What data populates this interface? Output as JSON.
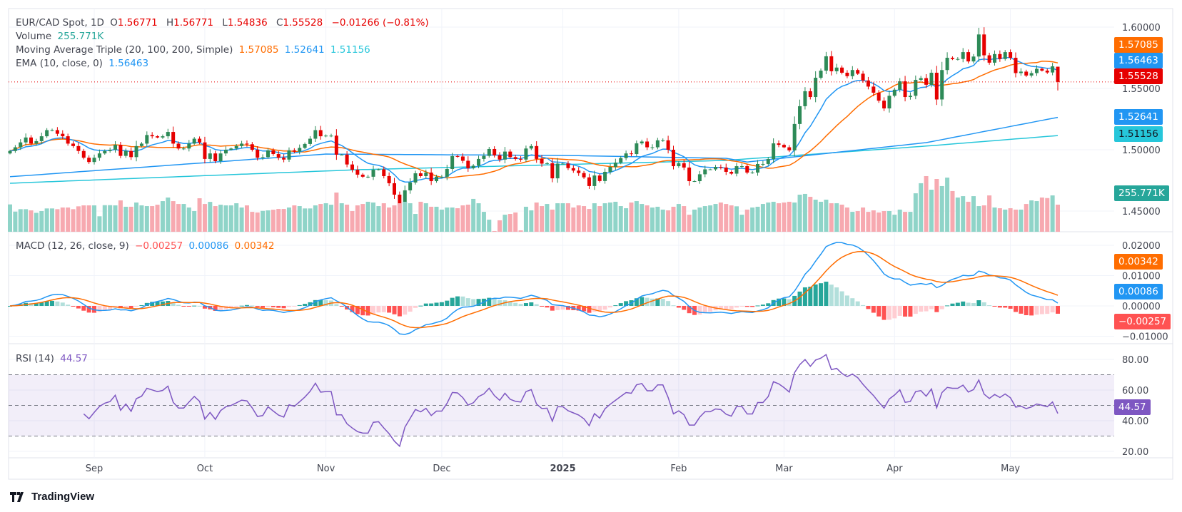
{
  "header": {
    "symbol": "EUR/CAD Spot, 1D",
    "o_label": "O",
    "open": "1.56771",
    "h_label": "H",
    "high": "1.56771",
    "l_label": "L",
    "low": "1.54836",
    "c_label": "C",
    "close": "1.55528",
    "change": "−0.01266 (−0.81%)"
  },
  "legend": {
    "volume_label": "Volume",
    "volume_value": "255.771K",
    "ma_label": "Moving Average Triple (20, 100, 200, Simple)",
    "ma20": "1.57085",
    "ma100": "1.52641",
    "ma200": "1.51156",
    "ema_label": "EMA (10, close, 0)",
    "ema": "1.56463",
    "macd_label": "MACD (12, 26, close, 9)",
    "macd_hist": "−0.00257",
    "macd": "0.00086",
    "macd_signal": "0.00342",
    "rsi_label": "RSI (14)",
    "rsi": "44.57"
  },
  "price_axis": [
    {
      "value": 1.6,
      "label": "1.60000"
    },
    {
      "value": 1.55,
      "label": "1.55000"
    },
    {
      "value": 1.5,
      "label": "1.50000"
    },
    {
      "value": 1.45,
      "label": "1.45000"
    }
  ],
  "macd_axis": [
    {
      "value": 0.02,
      "label": "0.02000"
    },
    {
      "value": 0.01,
      "label": "0.01000"
    },
    {
      "value": 0,
      "label": "0.00000"
    },
    {
      "value": -0.01,
      "label": "−0.01000"
    }
  ],
  "rsi_axis": [
    {
      "value": 80,
      "label": "80.00"
    },
    {
      "value": 60,
      "label": "60.00"
    },
    {
      "value": 40,
      "label": "40.00"
    },
    {
      "value": 20,
      "label": "20.00"
    }
  ],
  "time_axis": [
    {
      "label": "Sep",
      "bar": 16
    },
    {
      "label": "Oct",
      "bar": 37
    },
    {
      "label": "Nov",
      "bar": 60
    },
    {
      "label": "Dec",
      "bar": 82
    },
    {
      "label": "2025",
      "bar": 105,
      "bold": true
    },
    {
      "label": "Feb",
      "bar": 127
    },
    {
      "label": "Mar",
      "bar": 147
    },
    {
      "label": "Apr",
      "bar": 168
    },
    {
      "label": "May",
      "bar": 190
    }
  ],
  "branding": "TradingView",
  "colors": {
    "up": "#2d8a57",
    "down": "#e60000",
    "vol_up": "#8fd4c8",
    "vol_down": "#f7a9b0",
    "ema": "#2196f3",
    "sma20": "#ff6d00",
    "sma100": "#2196f3",
    "sma200": "#26c6da",
    "macd": "#2196f3",
    "signal": "#ff6d00",
    "rsi": "#7e57c2",
    "volume_label": "#26a69a",
    "hist_neg": "#ff5252"
  },
  "chart_data": {
    "type": "candlestick",
    "price_ylim": [
      1.44,
      1.61
    ],
    "first_open": 1.497,
    "last_bar": {
      "open": 1.56771,
      "high": 1.56771,
      "low": 1.54836,
      "close": 1.55528
    },
    "closes": [
      1.499,
      1.502,
      1.506,
      1.51,
      1.505,
      1.507,
      1.511,
      1.516,
      1.516,
      1.513,
      1.511,
      1.505,
      1.503,
      1.499,
      1.4935,
      1.49,
      1.4935,
      1.497,
      1.499,
      1.5,
      1.504,
      1.495,
      1.499,
      1.494,
      1.503,
      1.505,
      1.512,
      1.511,
      1.51,
      1.511,
      1.5145,
      1.505,
      1.501,
      1.501,
      1.505,
      1.509,
      1.506,
      1.4925,
      1.497,
      1.4907,
      1.497,
      1.5,
      1.501,
      1.503,
      1.505,
      1.5045,
      1.5,
      1.4935,
      1.494,
      1.4995,
      1.4965,
      1.4935,
      1.492,
      1.4995,
      1.4985,
      1.5015,
      1.5047,
      1.509,
      1.516,
      1.511,
      1.5115,
      1.5115,
      1.496,
      1.496,
      1.488,
      1.4837,
      1.4797,
      1.478,
      1.478,
      1.4837,
      1.484,
      1.4785,
      1.4727,
      1.4634,
      1.4553,
      1.4669,
      1.4733,
      1.4808,
      1.4785,
      1.4814,
      1.4744,
      1.478,
      1.478,
      1.4843,
      1.4948,
      1.4945,
      1.491,
      1.485,
      1.487,
      1.4925,
      1.495,
      1.5006,
      1.4955,
      1.492,
      1.4985,
      1.494,
      1.4925,
      1.492,
      1.501,
      1.503,
      1.4925,
      1.4887,
      1.489,
      1.4767,
      1.4887,
      1.4887,
      1.485,
      1.483,
      1.481,
      1.4775,
      1.4704,
      1.479,
      1.4745,
      1.482,
      1.486,
      1.4895,
      1.4932,
      1.497,
      1.4965,
      1.5052,
      1.5067,
      1.502,
      1.502,
      1.5077,
      1.5077,
      1.5,
      1.4866,
      1.489,
      1.4855,
      1.4744,
      1.4744,
      1.48,
      1.484,
      1.484,
      1.486,
      1.4855,
      1.482,
      1.4805,
      1.4866,
      1.4866,
      1.4814,
      1.4814,
      1.4884,
      1.4884,
      1.4924,
      1.5052,
      1.504,
      1.502,
      1.4995,
      1.521,
      1.5355,
      1.5477,
      1.543,
      1.5587,
      1.5645,
      1.5762,
      1.564,
      1.567,
      1.5628,
      1.56,
      1.565,
      1.562,
      1.5565,
      1.5515,
      1.5465,
      1.54,
      1.5337,
      1.544,
      1.549,
      1.5558,
      1.543,
      1.544,
      1.557,
      1.5584,
      1.553,
      1.5628,
      1.541,
      1.565,
      1.575,
      1.574,
      1.574,
      1.5796,
      1.572,
      1.576,
      1.594,
      1.577,
      1.571,
      1.578,
      1.574,
      1.5796,
      1.575,
      1.5625,
      1.5637,
      1.5605,
      1.5625,
      1.566,
      1.5645,
      1.563,
      1.568,
      1.55528
    ],
    "volumes_k": [
      258,
      190,
      213,
      213,
      202,
      179,
      195,
      220,
      220,
      213,
      229,
      229,
      213,
      240,
      249,
      249,
      249,
      146,
      251,
      251,
      249,
      296,
      236,
      236,
      276,
      249,
      242,
      242,
      255,
      289,
      323,
      289,
      262,
      262,
      229,
      195,
      316,
      262,
      282,
      242,
      255,
      249,
      249,
      269,
      229,
      249,
      188,
      182,
      197,
      202,
      208,
      215,
      215,
      229,
      249,
      242,
      220,
      220,
      249,
      262,
      269,
      255,
      370,
      269,
      256,
      195,
      249,
      262,
      283,
      276,
      242,
      269,
      229,
      249,
      269,
      283,
      269,
      168,
      283,
      269,
      236,
      236,
      209,
      229,
      229,
      222,
      249,
      256,
      310,
      269,
      188,
      114,
      7,
      108,
      161,
      168,
      182,
      13,
      236,
      202,
      276,
      242,
      262,
      209,
      269,
      269,
      269,
      229,
      249,
      242,
      215,
      269,
      242,
      269,
      276,
      283,
      242,
      222,
      276,
      289,
      262,
      249,
      229,
      236,
      209,
      202,
      236,
      262,
      242,
      161,
      209,
      229,
      242,
      249,
      262,
      276,
      262,
      249,
      240,
      161,
      209,
      229,
      236,
      262,
      276,
      283,
      269,
      276,
      283,
      276,
      350,
      357,
      330,
      303,
      283,
      303,
      269,
      269,
      256,
      229,
      188,
      195,
      229,
      188,
      202,
      182,
      195,
      195,
      161,
      209,
      188,
      188,
      363,
      458,
      525,
      397,
      498,
      431,
      511,
      384,
      323,
      336,
      283,
      336,
      242,
      249,
      343,
      229,
      222,
      209,
      222,
      209,
      209,
      262,
      296,
      289,
      323,
      318,
      343,
      255.771
    ],
    "sma100_points": [
      [
        0,
        1.478
      ],
      [
        60,
        1.4965
      ],
      [
        106,
        1.4953
      ],
      [
        136,
        1.493
      ],
      [
        140,
        1.49
      ],
      [
        174,
        1.5058
      ],
      [
        199,
        1.52641
      ]
    ],
    "sma200_points": [
      [
        0,
        1.4727
      ],
      [
        66,
        1.4837
      ],
      [
        136,
        1.4913
      ],
      [
        174,
        1.503
      ],
      [
        199,
        1.51156
      ]
    ],
    "ema_period": 10,
    "sma_period": 20,
    "macd_params": [
      12,
      26,
      9
    ],
    "macd_ylim": [
      -0.0125,
      0.0225
    ],
    "rsi_period": 14,
    "rsi_ylim": [
      10,
      90
    ],
    "rsi_bands": [
      30,
      50,
      70
    ]
  }
}
